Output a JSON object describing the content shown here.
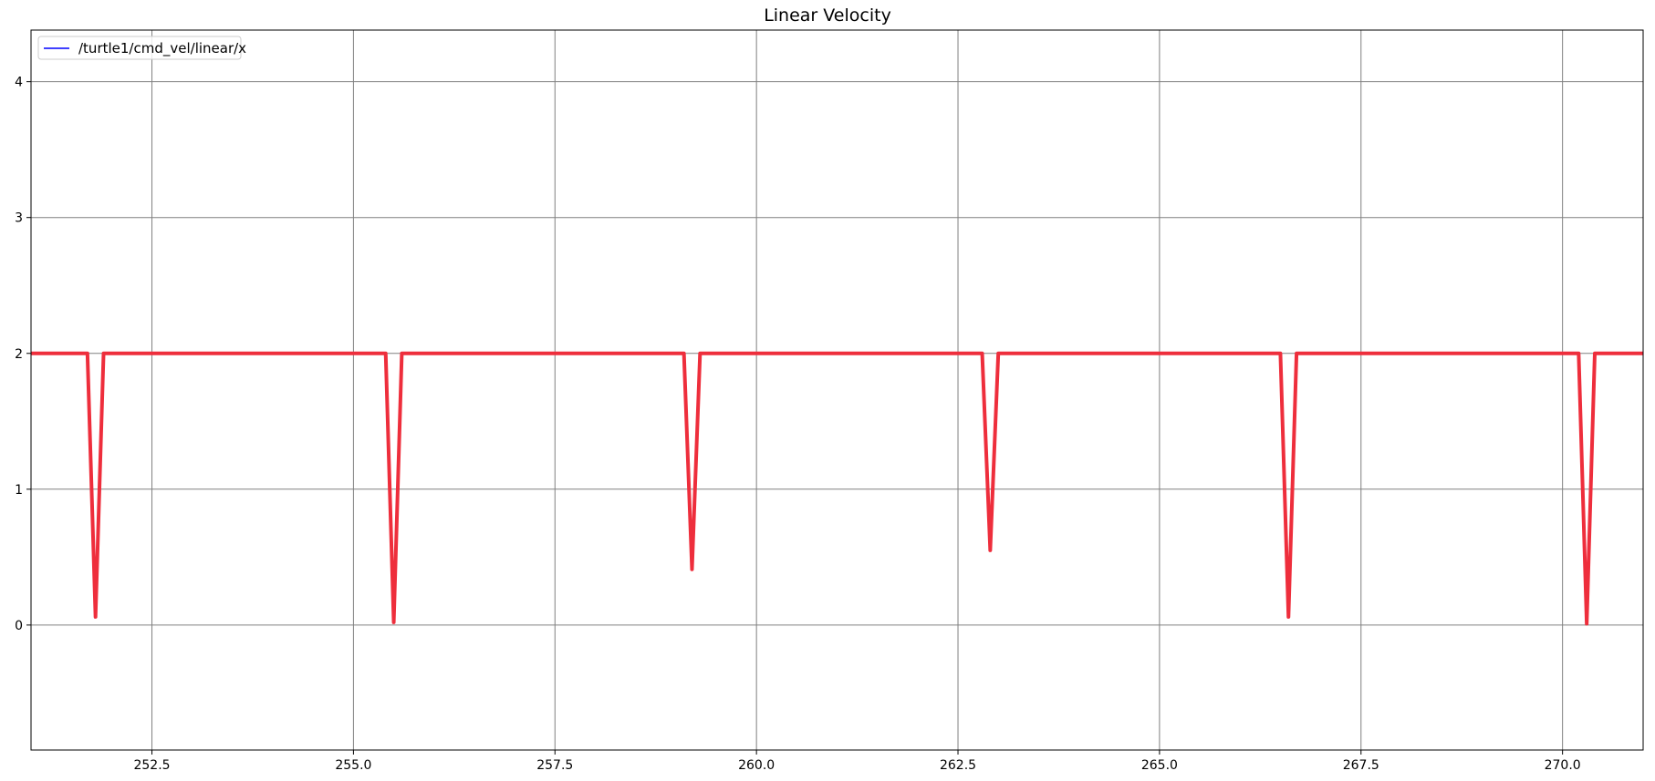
{
  "chart_data": {
    "type": "line",
    "title": "Linear Velocity",
    "xlabel": "",
    "ylabel": "",
    "xlim": [
      251.0,
      271.0
    ],
    "ylim": [
      -0.92,
      4.38
    ],
    "xticks": [
      252.5,
      255.0,
      257.5,
      260.0,
      262.5,
      265.0,
      267.5,
      270.0
    ],
    "xtick_labels": [
      "252.5",
      "255.0",
      "257.5",
      "260.0",
      "262.5",
      "265.0",
      "267.5",
      "270.0"
    ],
    "yticks": [
      0,
      1,
      2,
      3,
      4
    ],
    "ytick_labels": [
      "0",
      "1",
      "2",
      "3",
      "4"
    ],
    "grid": true,
    "legend": {
      "placement": "top-left",
      "entries": [
        {
          "label": "/turtle1/cmd_vel/linear/x",
          "color": "#0000ff"
        }
      ]
    },
    "series": [
      {
        "name": "/turtle1/cmd_vel/linear/x",
        "color": "#ee2e3c",
        "x": [
          251.0,
          251.7,
          251.8,
          251.9,
          255.4,
          255.5,
          255.6,
          259.1,
          259.2,
          259.3,
          262.8,
          262.9,
          263.0,
          266.5,
          266.6,
          266.7,
          270.2,
          270.3,
          270.4,
          271.0
        ],
        "y": [
          2,
          2,
          0.06,
          2,
          2,
          0.02,
          2,
          2,
          0.41,
          2,
          2,
          0.55,
          2,
          2,
          0.06,
          2,
          2,
          0.01,
          2,
          2
        ]
      }
    ]
  }
}
